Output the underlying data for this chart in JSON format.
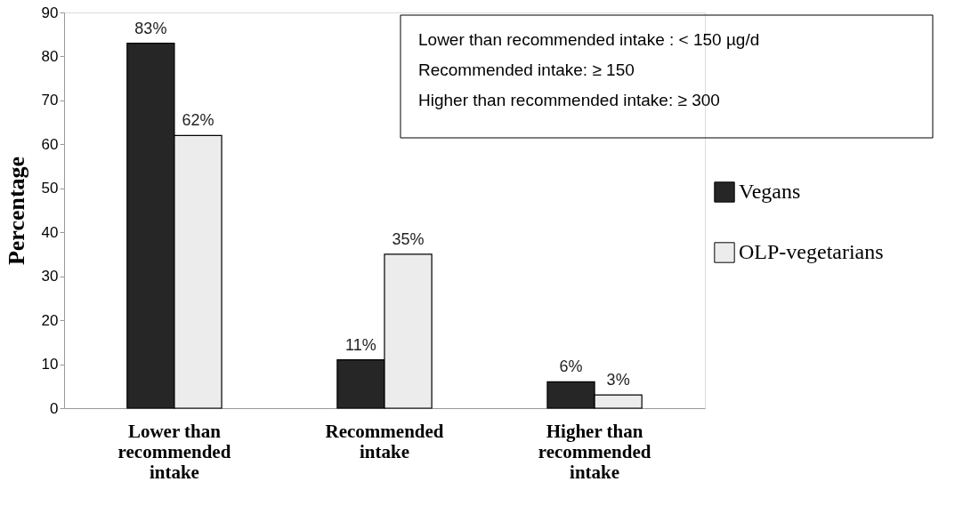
{
  "chart_data": {
    "type": "bar",
    "ylabel": "Percentage",
    "categories": [
      "Lower than recommended intake",
      "Recommended intake",
      "Higher than recommended intake"
    ],
    "series": [
      {
        "name": "Vegans",
        "color": "#262626",
        "values": [
          83,
          11,
          6
        ],
        "value_labels": [
          "83%",
          "11%",
          "6%"
        ]
      },
      {
        "name": "OLP-vegetarians",
        "color": "#ececec",
        "values": [
          62,
          35,
          3
        ],
        "value_labels": [
          "62%",
          "35%",
          "3%"
        ]
      }
    ],
    "ylim": [
      0,
      90
    ],
    "yticks": [
      0,
      10,
      20,
      30,
      40,
      50,
      60,
      70,
      80,
      90
    ],
    "grid": false,
    "legend": "right",
    "annotations": [
      "Lower than recommended intake : < 150 µg/d",
      "Recommended intake: ≥ 150",
      "Higher than recommended intake: ≥ 300"
    ]
  }
}
